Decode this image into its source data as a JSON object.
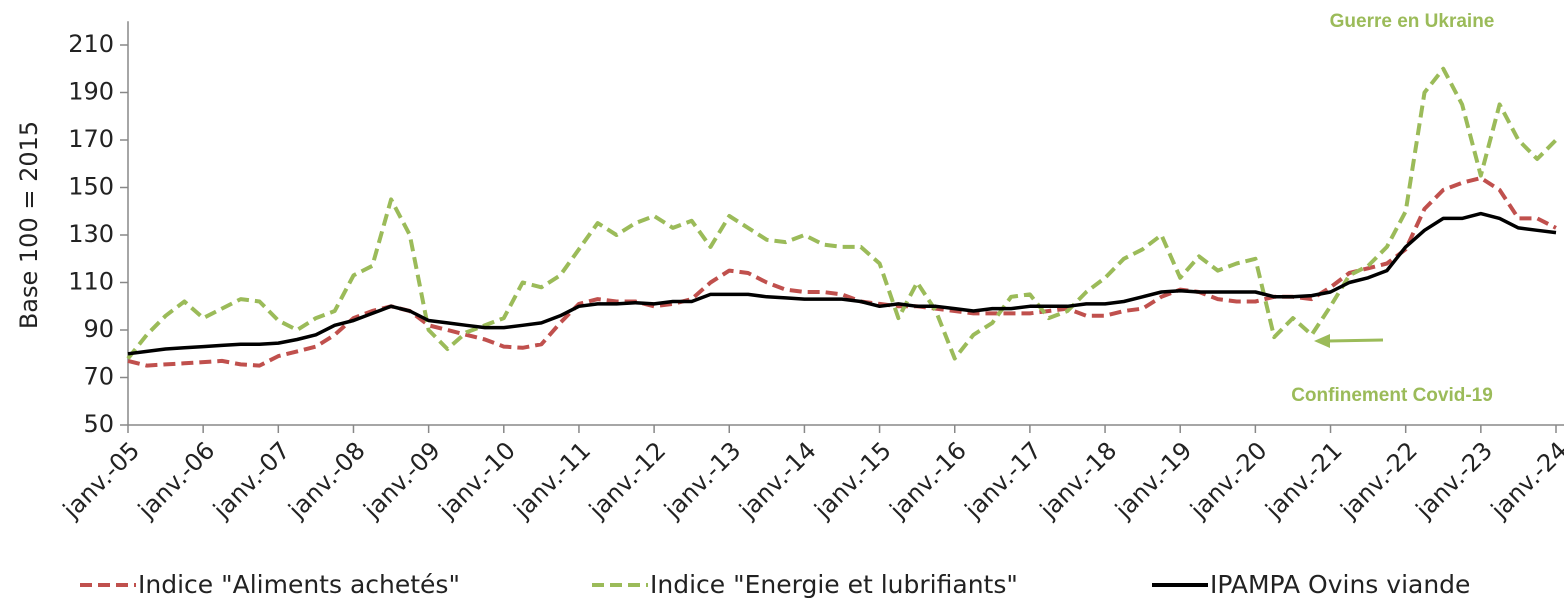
{
  "chart_data": {
    "type": "line",
    "y_label": "Base 100 = 2015",
    "annotations": [
      "Guerre en Ukraine",
      "Confinement  Covid-19"
    ],
    "categories": [
      "janv.-05",
      null,
      null,
      null,
      "janv.-06",
      null,
      null,
      null,
      "janv.-07",
      null,
      null,
      null,
      "janv.-08",
      null,
      null,
      null,
      "janv.-09",
      null,
      null,
      null,
      "janv.-10",
      null,
      null,
      null,
      "janv.-11",
      null,
      null,
      null,
      "janv.-12",
      null,
      null,
      null,
      "janv.-13",
      null,
      null,
      null,
      "janv.-14",
      null,
      null,
      null,
      "janv.-15",
      null,
      null,
      null,
      "janv.-16",
      null,
      null,
      null,
      "janv.-17",
      null,
      null,
      null,
      "janv.-18",
      null,
      null,
      null,
      "janv.-19",
      null,
      null,
      null,
      "janv.-20",
      null,
      null,
      null,
      "janv.-21",
      null,
      null,
      null,
      "janv.-22",
      null,
      null,
      null,
      "janv.-23",
      null,
      null,
      null,
      "janv.-24"
    ],
    "series": [
      {
        "name": "Indice \"Aliments achetés\"",
        "color": "#c0504d",
        "dash": true,
        "values": [
          77,
          75,
          75.5,
          76,
          76.5,
          77,
          75.5,
          75,
          79,
          81,
          83,
          88,
          95,
          98,
          100,
          98,
          92,
          90,
          88,
          86,
          83,
          82.5,
          84,
          93,
          101,
          103,
          102,
          102,
          100,
          101,
          103,
          110,
          115,
          114,
          110,
          107,
          106,
          106,
          105,
          102,
          101,
          100,
          100,
          99,
          98,
          97,
          97,
          97,
          97,
          98,
          99,
          96,
          96,
          98,
          99,
          104,
          107,
          106,
          103,
          102,
          102,
          104,
          104,
          103,
          108,
          114,
          116,
          118,
          124,
          141,
          149,
          152,
          154,
          149,
          137,
          137,
          133
        ]
      },
      {
        "name": "Indice \"Energie et lubrifiants\"",
        "color": "#9bbb59",
        "dash": true,
        "values": [
          78,
          88,
          96,
          102,
          95,
          99,
          103,
          102,
          94,
          90,
          95,
          98,
          113,
          117,
          145,
          130,
          90,
          82,
          89,
          92,
          95,
          110,
          108,
          113,
          124,
          135,
          130,
          135,
          138,
          133,
          136,
          125,
          138,
          133,
          128,
          127,
          130,
          126,
          125,
          125,
          118,
          95,
          110,
          98,
          78,
          88,
          93,
          104,
          105,
          95,
          98,
          106,
          112,
          120,
          124,
          130,
          112,
          121,
          115,
          118,
          120,
          87,
          95,
          88,
          100,
          113,
          117,
          125,
          140,
          190,
          200,
          185,
          155,
          185,
          170,
          162,
          170
        ]
      },
      {
        "name": "IPAMPA Ovins viande",
        "color": "#000000",
        "dash": false,
        "values": [
          80,
          81,
          82,
          82.5,
          83,
          83.5,
          84,
          84,
          84.5,
          86,
          88,
          92,
          94,
          97,
          100,
          98,
          94,
          93,
          92,
          91,
          91,
          92,
          93,
          96,
          100,
          101,
          101,
          101.5,
          101,
          102,
          102,
          105,
          105,
          105,
          104,
          103.5,
          103,
          103,
          103,
          102,
          100,
          101,
          100,
          100,
          99,
          98,
          99,
          99,
          100,
          100,
          100,
          101,
          101,
          102,
          104,
          106,
          106.5,
          106,
          106,
          106,
          106,
          104,
          104,
          104.5,
          106,
          110,
          112,
          115,
          125,
          132,
          137,
          137,
          139,
          137,
          133,
          132,
          131
        ]
      }
    ],
    "ylim": [
      50,
      220
    ],
    "yticks": [
      50,
      70,
      90,
      110,
      130,
      150,
      170,
      190,
      210
    ]
  }
}
